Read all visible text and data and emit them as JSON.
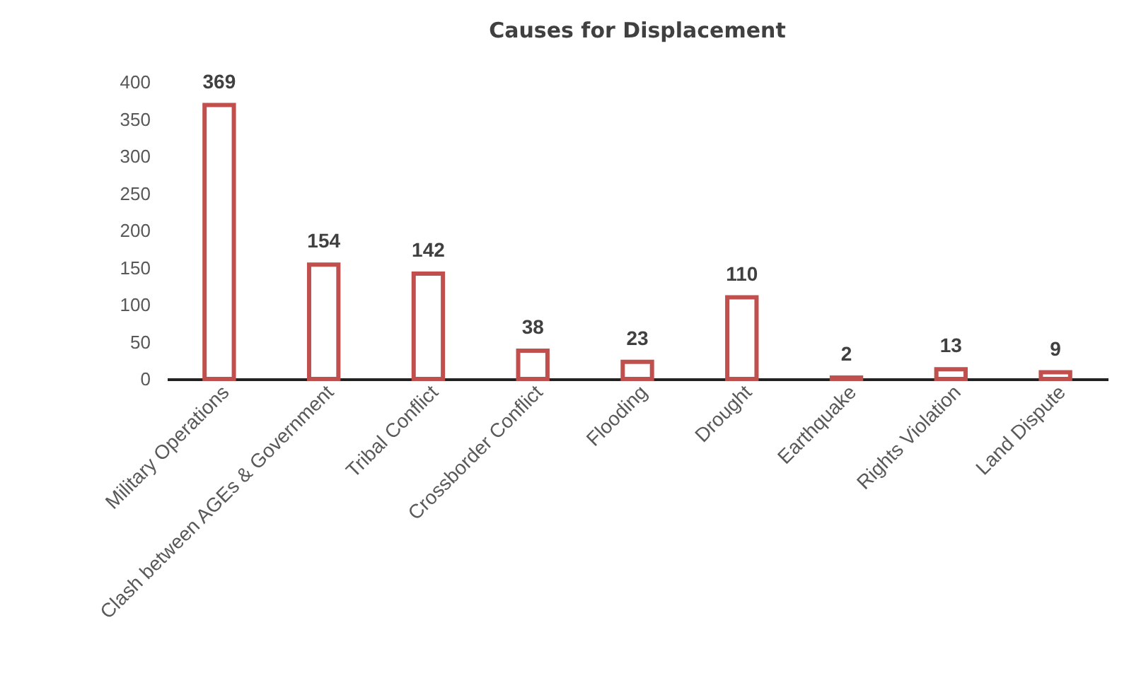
{
  "chart_data": {
    "type": "bar",
    "title": "Causes for Displacement",
    "categories": [
      "Military Operations",
      "Clash between AGEs & Government",
      "Tribal Conflict",
      "Crossborder Conflict",
      "Flooding",
      "Drought",
      "Earthquake",
      "Rights Violation",
      "Land Dispute"
    ],
    "values": [
      369,
      154,
      142,
      38,
      23,
      110,
      2,
      13,
      9
    ],
    "color": "#c0504d",
    "data_labels": true,
    "ylim": [
      0,
      400
    ],
    "yticks": [
      0,
      50,
      100,
      150,
      200,
      250,
      300,
      350,
      400
    ],
    "grid": false
  }
}
